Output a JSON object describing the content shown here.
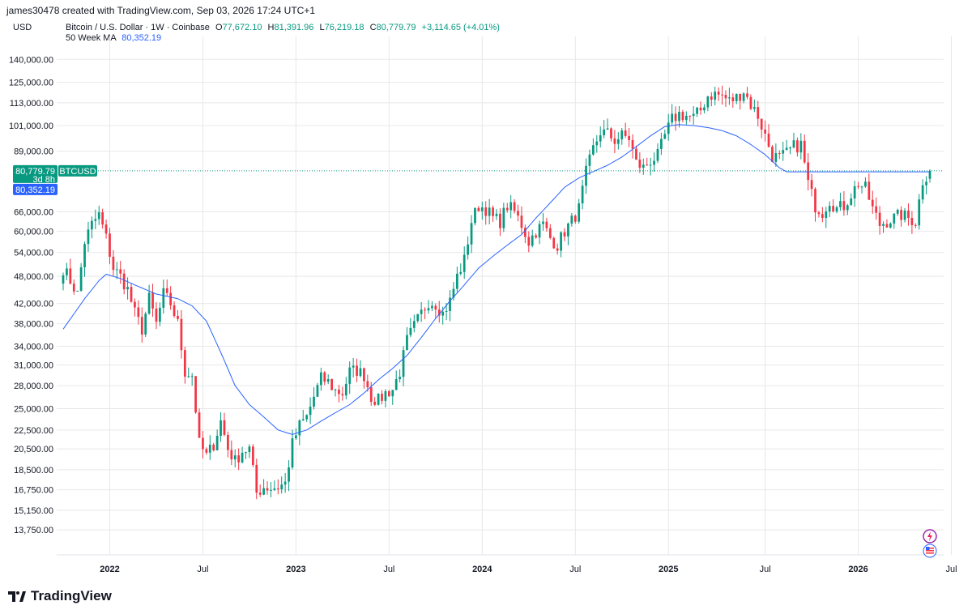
{
  "header": {
    "created_by": "james30478 created with TradingView.com, Sep 03, 2026 17:24 UTC+1",
    "currency": "USD"
  },
  "legend": {
    "symbol": "Bitcoin / U.S. Dollar · 1W · Coinbase",
    "open_label": "O",
    "open": "77,672.10",
    "high_label": "H",
    "high": "81,391.96",
    "low_label": "L",
    "low": "76,219.18",
    "close_label": "C",
    "close": "80,779.79",
    "change": "+3,114.65 (+4.01%)",
    "ma_label": "50 Week MA",
    "ma_value": "80,352.19"
  },
  "badges": {
    "price": "80,779.79",
    "symbol": "BTCUSD",
    "countdown": "3d 8h",
    "ma": "80,352.19"
  },
  "brand": {
    "name": "TradingView"
  },
  "colors": {
    "up": "#089981",
    "down": "#f23645",
    "ma": "#2962ff",
    "grid": "#e8e8e8",
    "text": "#131722"
  },
  "chart_data": {
    "type": "candlestick",
    "interval": "1W",
    "yscale": "log",
    "ylim": [
      12800,
      150000
    ],
    "y_ticks": [
      "140,000.00",
      "125,000.00",
      "113,000.00",
      "101,000.00",
      "89,000.00",
      "66,000.00",
      "60,000.00",
      "54,000.00",
      "48,000.00",
      "42,000.00",
      "38,000.00",
      "34,000.00",
      "31,000.00",
      "28,000.00",
      "25,000.00",
      "22,500.00",
      "20,500.00",
      "18,500.00",
      "16,750.00",
      "15,150.00",
      "13,750.00"
    ],
    "x_ticks": [
      {
        "label": "2022",
        "year": true
      },
      {
        "label": "Jul",
        "year": false
      },
      {
        "label": "2023",
        "year": true
      },
      {
        "label": "Jul",
        "year": false
      },
      {
        "label": "2024",
        "year": true
      },
      {
        "label": "Jul",
        "year": false
      },
      {
        "label": "2025",
        "year": true
      },
      {
        "label": "Jul",
        "year": false
      },
      {
        "label": "2026",
        "year": true
      },
      {
        "label": "Jul",
        "year": false
      }
    ],
    "x_tick_weeks": [
      13,
      39,
      65,
      91,
      117,
      143,
      169,
      196,
      222,
      248
    ],
    "anchors": [
      [
        0,
        50000
      ],
      [
        2,
        47000
      ],
      [
        4,
        44000
      ],
      [
        6,
        57000
      ],
      [
        8,
        62000
      ],
      [
        10,
        65000
      ],
      [
        12,
        58000
      ],
      [
        14,
        50000
      ],
      [
        16,
        48000
      ],
      [
        18,
        45000
      ],
      [
        20,
        40000
      ],
      [
        22,
        37000
      ],
      [
        24,
        43000
      ],
      [
        26,
        38000
      ],
      [
        28,
        44000
      ],
      [
        30,
        42000
      ],
      [
        32,
        38000
      ],
      [
        34,
        30000
      ],
      [
        36,
        29500
      ],
      [
        38,
        21000
      ],
      [
        40,
        19800
      ],
      [
        42,
        21000
      ],
      [
        44,
        23500
      ],
      [
        46,
        20500
      ],
      [
        48,
        19300
      ],
      [
        50,
        20300
      ],
      [
        52,
        20500
      ],
      [
        54,
        16500
      ],
      [
        56,
        17000
      ],
      [
        58,
        16900
      ],
      [
        60,
        17000
      ],
      [
        62,
        17300
      ],
      [
        64,
        21000
      ],
      [
        66,
        23000
      ],
      [
        68,
        24000
      ],
      [
        70,
        26500
      ],
      [
        72,
        29000
      ],
      [
        74,
        28500
      ],
      [
        76,
        27300
      ],
      [
        78,
        27000
      ],
      [
        80,
        30000
      ],
      [
        82,
        30200
      ],
      [
        84,
        29500
      ],
      [
        86,
        26500
      ],
      [
        88,
        26000
      ],
      [
        90,
        27000
      ],
      [
        92,
        27500
      ],
      [
        94,
        30000
      ],
      [
        96,
        35000
      ],
      [
        98,
        37500
      ],
      [
        100,
        40000
      ],
      [
        102,
        42500
      ],
      [
        104,
        42000
      ],
      [
        106,
        40000
      ],
      [
        108,
        42500
      ],
      [
        110,
        48000
      ],
      [
        112,
        52000
      ],
      [
        114,
        63000
      ],
      [
        116,
        68000
      ],
      [
        118,
        67000
      ],
      [
        120,
        64000
      ],
      [
        122,
        63000
      ],
      [
        124,
        68000
      ],
      [
        126,
        66000
      ],
      [
        128,
        62000
      ],
      [
        130,
        57000
      ],
      [
        132,
        60000
      ],
      [
        134,
        62000
      ],
      [
        136,
        58000
      ],
      [
        138,
        56000
      ],
      [
        140,
        60000
      ],
      [
        142,
        63000
      ],
      [
        144,
        67000
      ],
      [
        146,
        80000
      ],
      [
        148,
        90000
      ],
      [
        150,
        98000
      ],
      [
        152,
        97000
      ],
      [
        154,
        94000
      ],
      [
        156,
        96000
      ],
      [
        158,
        95000
      ],
      [
        160,
        84000
      ],
      [
        162,
        82000
      ],
      [
        164,
        85000
      ],
      [
        166,
        87000
      ],
      [
        168,
        96000
      ],
      [
        170,
        104000
      ],
      [
        172,
        107000
      ],
      [
        174,
        106000
      ],
      [
        176,
        105000
      ],
      [
        178,
        109000
      ],
      [
        180,
        117000
      ],
      [
        182,
        118000
      ],
      [
        184,
        117000
      ],
      [
        186,
        114000
      ],
      [
        188,
        116000
      ],
      [
        190,
        120000
      ],
      [
        192,
        112000
      ],
      [
        194,
        106000
      ],
      [
        196,
        96000
      ],
      [
        198,
        87000
      ],
      [
        200,
        86000
      ],
      [
        202,
        88000
      ],
      [
        204,
        91000
      ],
      [
        206,
        92000
      ],
      [
        208,
        76000
      ],
      [
        210,
        68000
      ],
      [
        212,
        66000
      ],
      [
        214,
        70000
      ],
      [
        216,
        67000
      ],
      [
        218,
        68000
      ],
      [
        220,
        72000
      ],
      [
        222,
        76000
      ],
      [
        224,
        74000
      ],
      [
        226,
        67000
      ],
      [
        228,
        62000
      ],
      [
        230,
        63000
      ],
      [
        232,
        64000
      ],
      [
        234,
        65000
      ],
      [
        236,
        64000
      ],
      [
        238,
        63000
      ],
      [
        240,
        77000
      ],
      [
        242,
        80800
      ]
    ],
    "ma_anchors": [
      [
        0,
        37000
      ],
      [
        6,
        43000
      ],
      [
        10,
        47000
      ],
      [
        12,
        48500
      ],
      [
        16,
        47500
      ],
      [
        20,
        46000
      ],
      [
        26,
        44000
      ],
      [
        32,
        43000
      ],
      [
        36,
        41500
      ],
      [
        40,
        38500
      ],
      [
        44,
        33000
      ],
      [
        48,
        28000
      ],
      [
        52,
        25500
      ],
      [
        56,
        24000
      ],
      [
        60,
        22500
      ],
      [
        64,
        22000
      ],
      [
        68,
        22500
      ],
      [
        72,
        23500
      ],
      [
        76,
        24500
      ],
      [
        80,
        25500
      ],
      [
        84,
        27000
      ],
      [
        88,
        28800
      ],
      [
        92,
        30500
      ],
      [
        96,
        32500
      ],
      [
        100,
        35500
      ],
      [
        104,
        39000
      ],
      [
        108,
        42500
      ],
      [
        112,
        46000
      ],
      [
        116,
        50000
      ],
      [
        120,
        53000
      ],
      [
        124,
        56000
      ],
      [
        128,
        59000
      ],
      [
        132,
        64000
      ],
      [
        136,
        69000
      ],
      [
        140,
        74500
      ],
      [
        144,
        78000
      ],
      [
        148,
        80500
      ],
      [
        152,
        83000
      ],
      [
        156,
        86500
      ],
      [
        160,
        91000
      ],
      [
        164,
        96000
      ],
      [
        168,
        100500
      ],
      [
        172,
        101500
      ],
      [
        176,
        101000
      ],
      [
        180,
        100000
      ],
      [
        184,
        98500
      ],
      [
        188,
        96000
      ],
      [
        192,
        92000
      ],
      [
        196,
        87500
      ],
      [
        200,
        82000
      ],
      [
        202,
        80400
      ]
    ],
    "last_close": 80779.79,
    "ma_last": 80352.19
  }
}
